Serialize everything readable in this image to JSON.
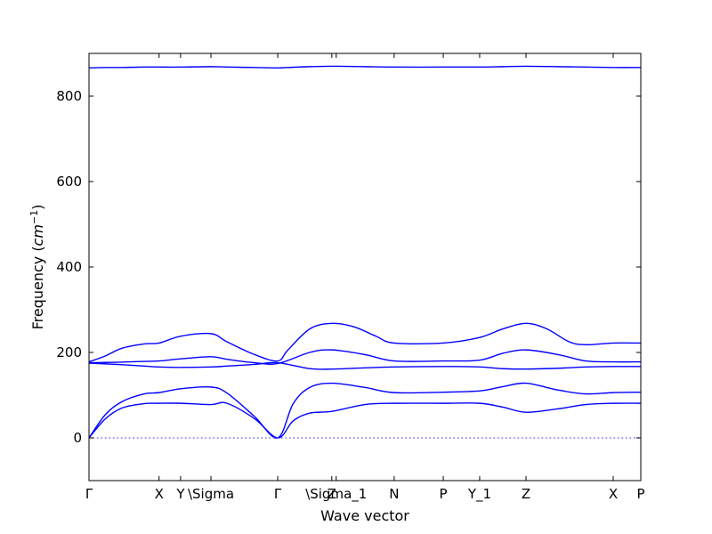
{
  "chart_data": {
    "type": "line",
    "xlabel": "Wave vector",
    "ylabel": "Frequency (",
    "ylabel_unit": "cm",
    "ylabel_exp": "−1",
    "ylabel_close": ")",
    "ylim": [
      -100,
      900
    ],
    "xlim": [
      0,
      1
    ],
    "yticks": [
      0,
      200,
      400,
      600,
      800
    ],
    "ytick_labels": [
      "0",
      "200",
      "400",
      "600",
      "800"
    ],
    "line_color": "#0000ff",
    "zero_line_color": "#6a6aff",
    "grid": false,
    "xticks": [
      {
        "pos": 0.0,
        "label": "Γ"
      },
      {
        "pos": 0.127,
        "label": "X"
      },
      {
        "pos": 0.166,
        "label": "Y"
      },
      {
        "pos": 0.221,
        "label": "\\Sigma"
      },
      {
        "pos": 0.342,
        "label": "Γ"
      },
      {
        "pos": 0.44,
        "label": "Z"
      },
      {
        "pos": 0.448,
        "label": "\\Sigma_1"
      },
      {
        "pos": 0.553,
        "label": "N"
      },
      {
        "pos": 0.642,
        "label": "P"
      },
      {
        "pos": 0.708,
        "label": "Y_1"
      },
      {
        "pos": 0.792,
        "label": "Z"
      },
      {
        "pos": 0.95,
        "label": "X"
      },
      {
        "pos": 1.0,
        "label": "P"
      }
    ],
    "series": [
      {
        "x": [
          0,
          0.03,
          0.06,
          0.1,
          0.127,
          0.166,
          0.221,
          0.25,
          0.3,
          0.342,
          0.36,
          0.4,
          0.44,
          0.5,
          0.553,
          0.642,
          0.708,
          0.75,
          0.792,
          0.85,
          0.9,
          0.95,
          1.0
        ],
        "values": [
          866,
          867,
          867,
          868,
          868,
          868,
          869,
          868,
          867,
          866,
          867,
          869,
          870,
          869,
          868,
          868,
          868,
          869,
          870,
          869,
          868,
          867,
          867
        ]
      },
      {
        "x": [
          0,
          0.03,
          0.06,
          0.1,
          0.127,
          0.166,
          0.221,
          0.25,
          0.3,
          0.342,
          0.36,
          0.4,
          0.44,
          0.48,
          0.52,
          0.553,
          0.642,
          0.708,
          0.75,
          0.792,
          0.83,
          0.87,
          0.9,
          0.95,
          1.0
        ],
        "values": [
          178,
          192,
          210,
          220,
          222,
          238,
          244,
          225,
          195,
          180,
          205,
          255,
          268,
          260,
          238,
          222,
          222,
          235,
          255,
          268,
          255,
          225,
          218,
          222,
          222
        ]
      },
      {
        "x": [
          0,
          0.05,
          0.1,
          0.127,
          0.166,
          0.221,
          0.25,
          0.3,
          0.342,
          0.4,
          0.44,
          0.5,
          0.553,
          0.642,
          0.708,
          0.75,
          0.792,
          0.85,
          0.9,
          0.95,
          1.0
        ],
        "values": [
          176,
          177,
          179,
          180,
          185,
          190,
          184,
          176,
          174,
          200,
          206,
          195,
          180,
          180,
          182,
          198,
          206,
          195,
          180,
          178,
          178
        ]
      },
      {
        "x": [
          0,
          0.05,
          0.1,
          0.127,
          0.166,
          0.221,
          0.25,
          0.3,
          0.342,
          0.4,
          0.44,
          0.5,
          0.553,
          0.642,
          0.708,
          0.75,
          0.792,
          0.85,
          0.9,
          0.95,
          1.0
        ],
        "values": [
          175,
          172,
          168,
          166,
          165,
          166,
          168,
          172,
          176,
          162,
          161,
          164,
          166,
          167,
          166,
          162,
          161,
          163,
          166,
          167,
          167
        ]
      },
      {
        "x": [
          0,
          0.03,
          0.06,
          0.1,
          0.127,
          0.166,
          0.221,
          0.25,
          0.3,
          0.342,
          0.37,
          0.4,
          0.44,
          0.5,
          0.553,
          0.642,
          0.708,
          0.75,
          0.792,
          0.85,
          0.9,
          0.95,
          1.0
        ],
        "values": [
          0,
          55,
          85,
          103,
          106,
          115,
          119,
          105,
          50,
          0,
          80,
          118,
          128,
          118,
          106,
          107,
          110,
          120,
          128,
          112,
          103,
          106,
          107
        ]
      },
      {
        "x": [
          0,
          0.03,
          0.06,
          0.1,
          0.127,
          0.166,
          0.221,
          0.25,
          0.3,
          0.342,
          0.37,
          0.4,
          0.44,
          0.5,
          0.553,
          0.642,
          0.708,
          0.75,
          0.792,
          0.85,
          0.9,
          0.95,
          1.0
        ],
        "values": [
          0,
          45,
          70,
          80,
          81,
          81,
          78,
          81,
          45,
          0,
          40,
          58,
          62,
          78,
          81,
          81,
          81,
          72,
          60,
          68,
          78,
          81,
          81
        ]
      },
      {
        "x": [
          0,
          1
        ],
        "values": [
          0,
          0
        ],
        "style": "dotted"
      }
    ]
  }
}
